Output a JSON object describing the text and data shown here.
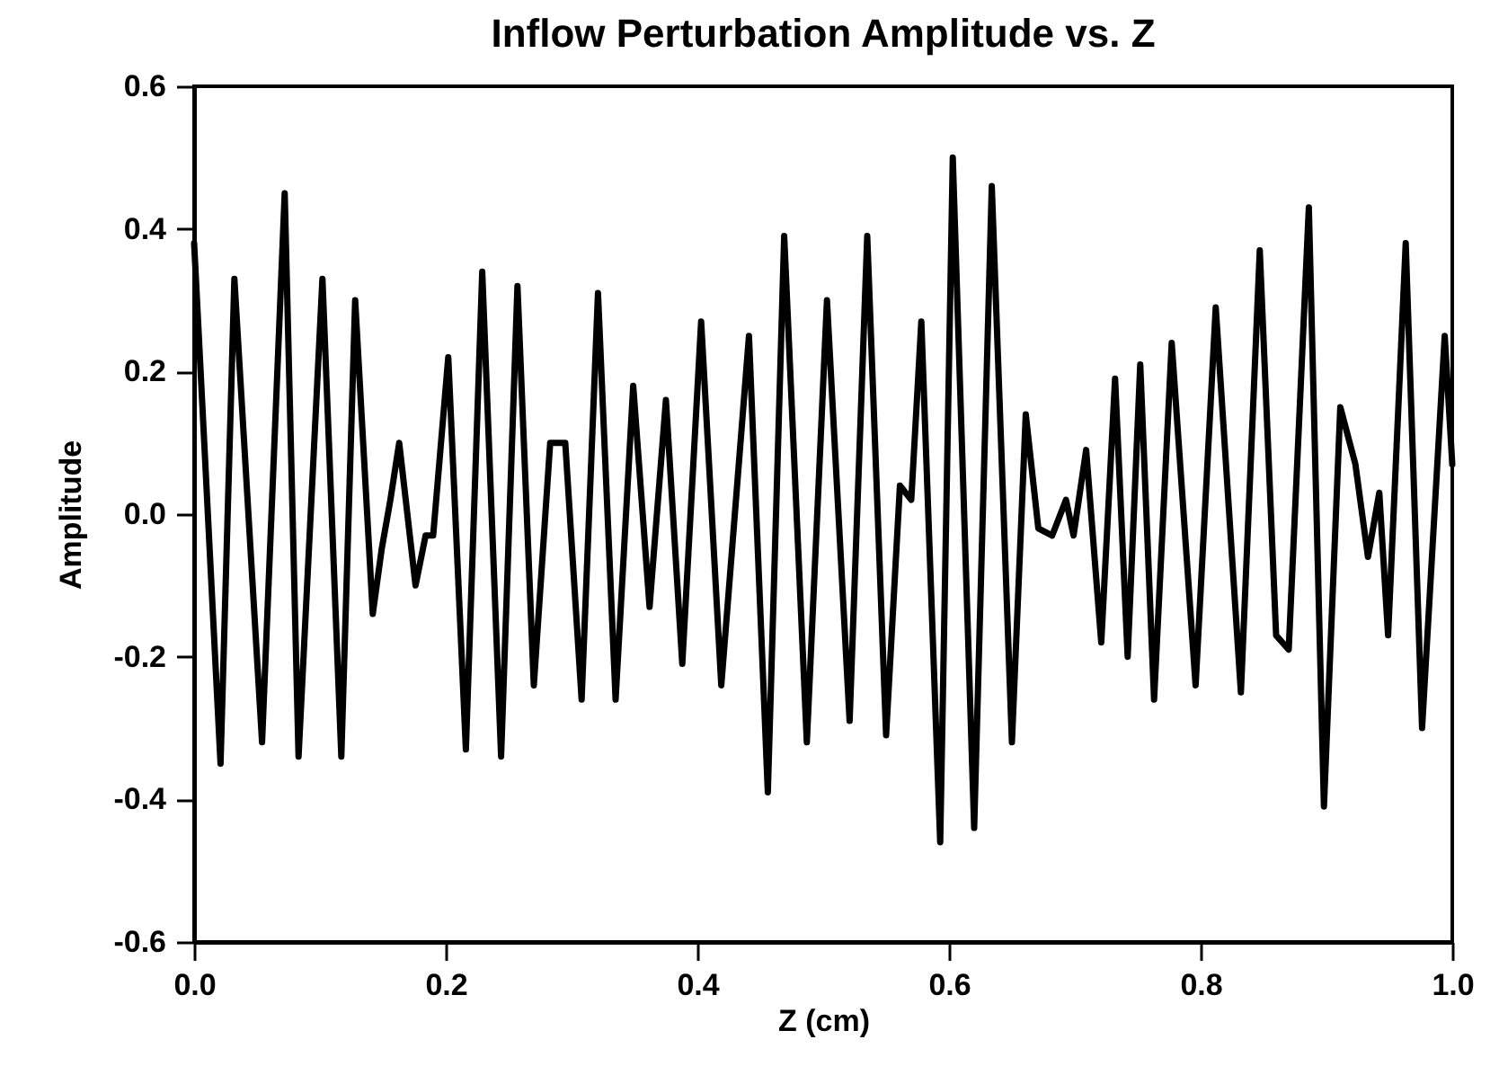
{
  "chart_data": {
    "type": "line",
    "title": "Inflow Perturbation Amplitude vs. Z",
    "xlabel": "Z  (cm)",
    "ylabel": "Amplitude",
    "x": [
      0,
      0.021,
      0.032,
      0.054,
      0.072,
      0.083,
      0.102,
      0.117,
      0.128,
      0.142,
      0.149,
      0.156,
      0.163,
      0.176,
      0.184,
      0.19,
      0.202,
      0.216,
      0.229,
      0.244,
      0.257,
      0.27,
      0.283,
      0.295,
      0.308,
      0.321,
      0.335,
      0.349,
      0.362,
      0.375,
      0.388,
      0.403,
      0.419,
      0.441,
      0.456,
      0.469,
      0.487,
      0.503,
      0.521,
      0.535,
      0.55,
      0.561,
      0.57,
      0.578,
      0.593,
      0.603,
      0.62,
      0.634,
      0.65,
      0.661,
      0.671,
      0.682,
      0.693,
      0.699,
      0.709,
      0.721,
      0.732,
      0.742,
      0.752,
      0.763,
      0.777,
      0.796,
      0.812,
      0.832,
      0.847,
      0.86,
      0.87,
      0.886,
      0.898,
      0.911,
      0.923,
      0.933,
      0.942,
      0.949,
      0.963,
      0.976,
      0.994,
      1
    ],
    "series": [
      {
        "color": "#000000",
        "values": [
          0.38,
          -0.35,
          0.33,
          -0.32,
          0.45,
          -0.34,
          0.33,
          -0.34,
          0.3,
          -0.14,
          -0.05,
          0.02,
          0.1,
          -0.1,
          -0.03,
          -0.03,
          0.22,
          -0.33,
          0.34,
          -0.34,
          0.32,
          -0.24,
          0.1,
          0.1,
          -0.26,
          0.31,
          -0.26,
          0.18,
          -0.13,
          0.16,
          -0.21,
          0.27,
          -0.24,
          0.25,
          -0.39,
          0.39,
          -0.32,
          0.3,
          -0.29,
          0.39,
          -0.31,
          0.04,
          0.02,
          0.27,
          -0.46,
          0.5,
          -0.44,
          0.46,
          -0.32,
          0.14,
          -0.02,
          -0.03,
          0.02,
          -0.03,
          0.09,
          -0.18,
          0.19,
          -0.2,
          0.21,
          -0.26,
          0.24,
          -0.24,
          0.29,
          -0.25,
          0.37,
          -0.17,
          -0.19,
          0.43,
          -0.41,
          0.15,
          0.07,
          -0.06,
          0.03,
          -0.17,
          0.38,
          -0.3,
          0.25,
          0.07
        ]
      }
    ],
    "xlim": [
      0,
      1
    ],
    "xticks": [
      {
        "value": 0,
        "label": "0.0"
      },
      0.2,
      0.4,
      0.6,
      0.8,
      {
        "value": 1,
        "label": "1.0"
      }
    ],
    "ylim": [
      -0.6,
      0.6
    ],
    "yticks": [
      -0.6,
      -0.4,
      -0.2,
      {
        "value": 0,
        "label": "0.0"
      },
      0.2,
      0.4,
      0.6
    ],
    "line_style": "solid",
    "grid": false
  }
}
